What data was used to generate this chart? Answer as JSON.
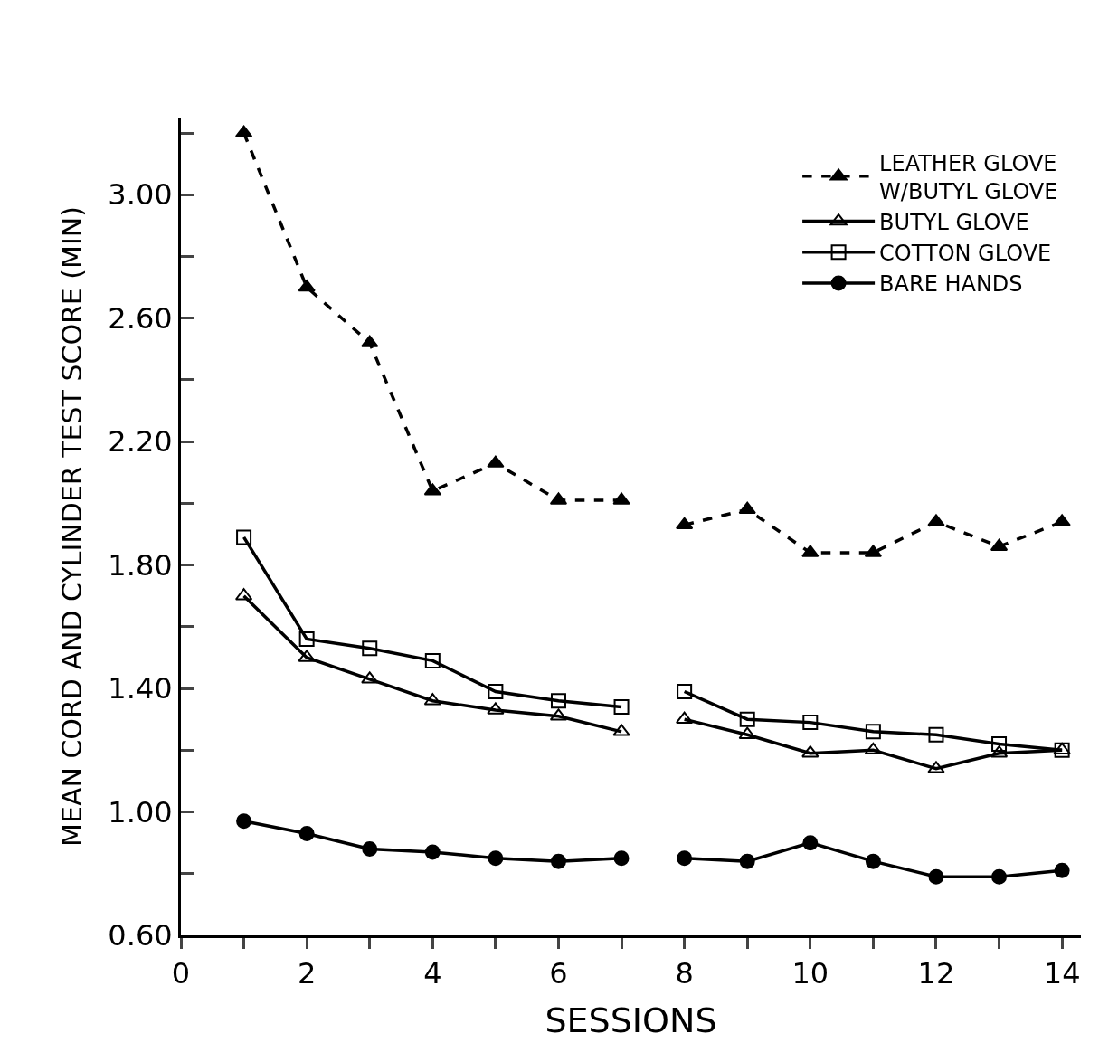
{
  "chart_data": {
    "type": "line",
    "xlabel": "SESSIONS",
    "ylabel": "MEAN CORD AND CYLINDER TEST SCORE (MIN)",
    "x": [
      1,
      2,
      3,
      4,
      5,
      6,
      7,
      7.5,
      8,
      9,
      10,
      11,
      12,
      13,
      14
    ],
    "series": [
      {
        "name": "LEATHER GLOVE\nW/BUTYL GLOVE",
        "color": "#000000",
        "marker": "triangle",
        "line_style": "dashed",
        "values": [
          3.2,
          2.7,
          2.52,
          2.04,
          2.13,
          2.01,
          2.01,
          null,
          1.93,
          1.98,
          1.84,
          1.84,
          1.94,
          1.86,
          1.94
        ]
      },
      {
        "name": "BUTYL GLOVE",
        "color": "#000000",
        "marker": "triangle-open",
        "line_style": "solid",
        "values": [
          1.7,
          1.5,
          1.43,
          1.36,
          1.33,
          1.31,
          1.26,
          null,
          1.3,
          1.25,
          1.19,
          1.2,
          1.14,
          1.19,
          1.2
        ]
      },
      {
        "name": "COTTON GLOVE",
        "color": "#000000",
        "marker": "square-open",
        "line_style": "solid",
        "values": [
          1.89,
          1.56,
          1.53,
          1.49,
          1.39,
          1.36,
          1.34,
          null,
          1.39,
          1.3,
          1.29,
          1.26,
          1.25,
          1.22,
          1.2
        ]
      },
      {
        "name": "BARE HANDS",
        "color": "#000000",
        "marker": "circle",
        "line_style": "solid",
        "values": [
          0.97,
          0.93,
          0.88,
          0.87,
          0.85,
          0.84,
          0.85,
          null,
          0.85,
          0.84,
          0.9,
          0.84,
          0.79,
          0.79,
          0.81
        ]
      }
    ],
    "xlim": [
      0,
      14.3
    ],
    "xticks": [
      0,
      {
        "value": 1,
        "label": null
      },
      2,
      {
        "value": 3,
        "label": null
      },
      4,
      {
        "value": 5,
        "label": null
      },
      6,
      {
        "value": 7,
        "label": null
      },
      8,
      {
        "value": 9,
        "label": null
      },
      10,
      {
        "value": 11,
        "label": null
      },
      12,
      {
        "value": 13,
        "label": null
      },
      14
    ],
    "ylim": [
      0.6,
      3.25
    ],
    "yticks": [
      {
        "value": 0.6,
        "label": "0.60"
      },
      {
        "value": 0.8,
        "label": null
      },
      {
        "value": 1.0,
        "label": "1.00"
      },
      {
        "value": 1.2,
        "label": null
      },
      {
        "value": 1.4,
        "label": "1.40"
      },
      {
        "value": 1.6,
        "label": null
      },
      {
        "value": 1.8,
        "label": "1.80"
      },
      {
        "value": 2.0,
        "label": null
      },
      {
        "value": 2.2,
        "label": "2.20"
      },
      {
        "value": 2.4,
        "label": null
      },
      {
        "value": 2.6,
        "label": "2.60"
      },
      {
        "value": 2.8,
        "label": null
      },
      {
        "value": 3.0,
        "label": "3.00"
      },
      {
        "value": 3.2,
        "label": null
      }
    ],
    "grid": false,
    "legend": "top right"
  }
}
